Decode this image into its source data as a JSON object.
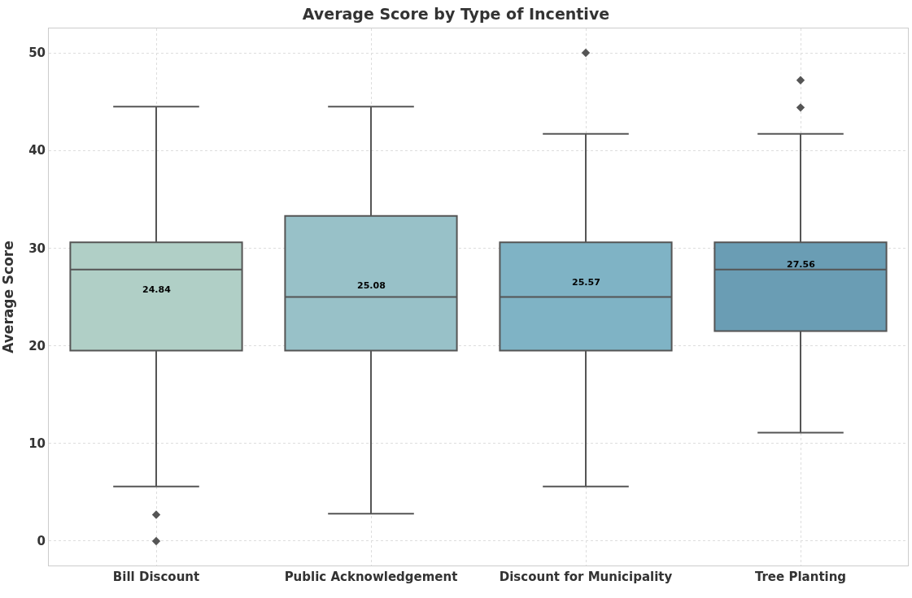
{
  "chart_data": {
    "type": "box",
    "title": "Average Score by Type of Incentive",
    "ylabel": "Average Score",
    "categories": [
      "Bill Discount",
      "Public Acknowledgement",
      "Discount for Municipality",
      "Tree Planting"
    ],
    "colors": [
      "#b0cfc6",
      "#98c1c8",
      "#7fb3c5",
      "#6a9db4"
    ],
    "boxes": [
      {
        "low": 5.6,
        "q1": 19.5,
        "median": 27.8,
        "q3": 30.6,
        "high": 44.5,
        "outliers": [
          2.7,
          0
        ]
      },
      {
        "low": 2.8,
        "q1": 19.5,
        "median": 25.0,
        "q3": 33.3,
        "high": 44.5
      },
      {
        "low": 5.6,
        "q1": 19.5,
        "median": 25.0,
        "q3": 30.6,
        "high": 41.7,
        "outliers": [
          50
        ]
      },
      {
        "low": 11.1,
        "q1": 21.5,
        "median": 27.8,
        "q3": 30.6,
        "high": 41.7,
        "outliers": [
          47.2,
          44.4
        ]
      }
    ],
    "annotations": [
      "24.84",
      "25.08",
      "25.57",
      "27.56"
    ],
    "ylim": [
      -2.5,
      52.5
    ],
    "yticks": [
      0,
      10,
      20,
      30,
      40,
      50
    ],
    "grid": true,
    "marker": "diamond"
  }
}
